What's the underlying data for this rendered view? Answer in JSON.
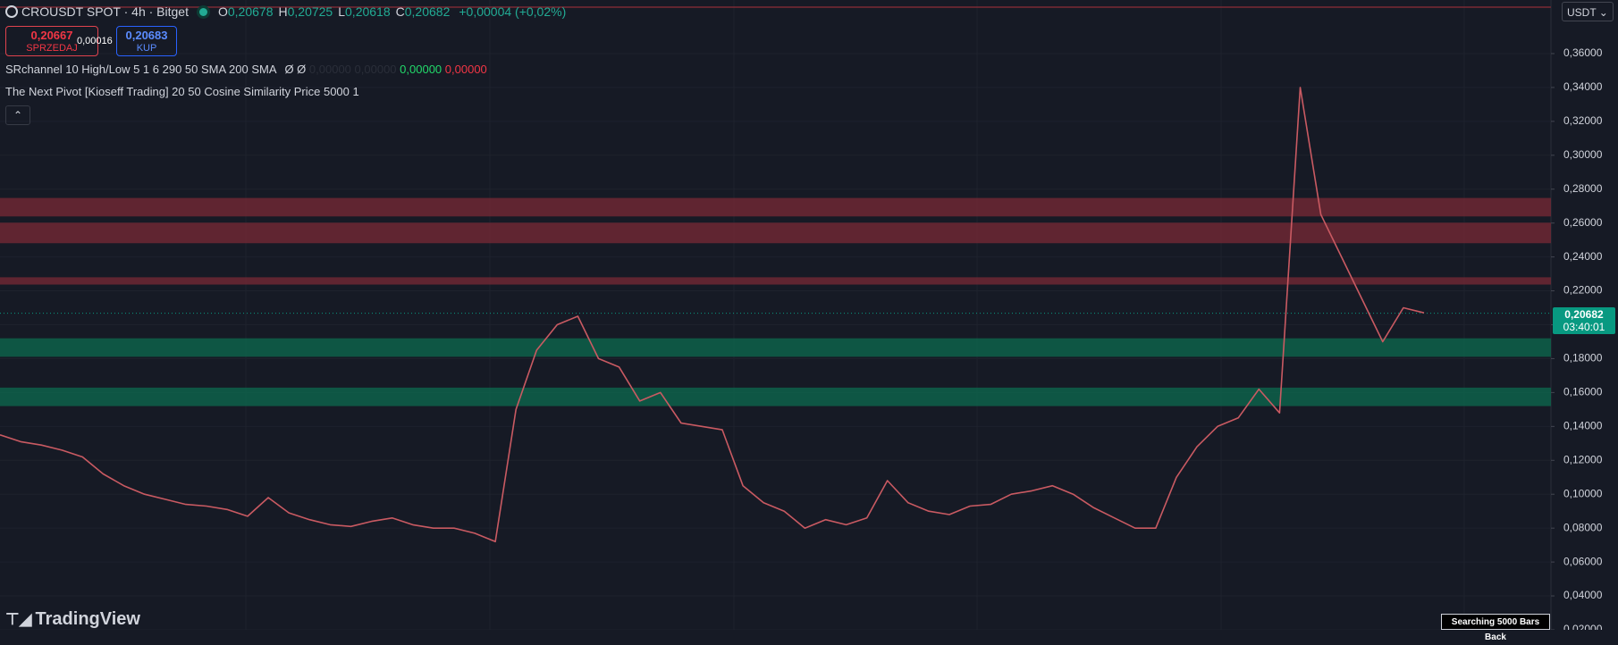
{
  "header": {
    "symbol": "CROUSDT SPOT · 4h · Bitget",
    "ohlc": [
      {
        "label": "O",
        "value": "0,20678"
      },
      {
        "label": "H",
        "value": "0,20725"
      },
      {
        "label": "L",
        "value": "0,20618"
      },
      {
        "label": "C",
        "value": "0,20682"
      }
    ],
    "change": "+0,00004 (+0,02%)"
  },
  "trade": {
    "sell_price": "0,20667",
    "sell_label": "SPRZEDAJ",
    "spread": "0,00016",
    "buy_price": "0,20683",
    "buy_label": "KUP"
  },
  "indicators": [
    {
      "name": "SRchannel 10 High/Low 5 1 6 290 50 SMA 200 SMA",
      "flags": "Ø Ø",
      "values": [
        "0,00000",
        "0,00000",
        "0,00000",
        "0,00000"
      ]
    },
    {
      "name": "The Next Pivot [Kioseff Trading] 20 50 Cosine Similarity Price 5000 1"
    }
  ],
  "currency": "USDT",
  "countdown": "03:40:01",
  "footer": {
    "logo": "TradingView",
    "status": "Searching 5000 Bars Back"
  },
  "chart_data": {
    "type": "line",
    "series": [
      {
        "color": "#c95a62",
        "values": [
          0.135,
          0.131,
          0.129,
          0.126,
          0.122,
          0.112,
          0.105,
          0.1,
          0.097,
          0.094,
          0.093,
          0.091,
          0.087,
          0.098,
          0.089,
          0.085,
          0.082,
          0.081,
          0.084,
          0.086,
          0.082,
          0.08,
          0.08,
          0.077,
          0.072,
          0.15,
          0.185,
          0.2,
          0.205,
          0.18,
          0.175,
          0.155,
          0.16,
          0.142,
          0.14,
          0.138,
          0.105,
          0.095,
          0.09,
          0.08,
          0.085,
          0.082,
          0.086,
          0.108,
          0.095,
          0.09,
          0.088,
          0.093,
          0.094,
          0.1,
          0.102,
          0.105,
          0.1,
          0.092,
          0.086,
          0.08,
          0.08,
          0.11,
          0.128,
          0.14,
          0.145,
          0.162,
          0.148,
          0.34,
          0.265,
          0.24,
          0.215,
          0.19,
          0.21,
          0.207
        ]
      }
    ],
    "zones": [
      {
        "low": 0.2639,
        "high": 0.2748,
        "color": "#7a2a35"
      },
      {
        "low": 0.2481,
        "high": 0.2602,
        "color": "#7a2a35"
      },
      {
        "low": 0.2237,
        "high": 0.228,
        "color": "#7a2a35"
      },
      {
        "low": 0.1811,
        "high": 0.192,
        "color": "#0c6b4f"
      },
      {
        "low": 0.152,
        "high": 0.1629,
        "color": "#0c6b4f"
      }
    ],
    "levels": [
      0.3874
    ],
    "last_price": {
      "value": 0.20682,
      "label": "0,20682"
    },
    "ylim": [
      0.02,
      0.3916
    ],
    "yticks": [
      {
        "value": 0.02,
        "label": "0,02000"
      },
      {
        "value": 0.04,
        "label": "0,04000"
      },
      {
        "value": 0.06,
        "label": "0,06000"
      },
      {
        "value": 0.08,
        "label": "0,08000"
      },
      {
        "value": 0.1,
        "label": "0,10000"
      },
      {
        "value": 0.12,
        "label": "0,12000"
      },
      {
        "value": 0.14,
        "label": "0,14000"
      },
      {
        "value": 0.16,
        "label": "0,16000"
      },
      {
        "value": 0.18,
        "label": "0,18000"
      },
      {
        "value": 0.2,
        "label": "0,20000"
      },
      {
        "value": 0.22,
        "label": "0,22000"
      },
      {
        "value": 0.24,
        "label": "0,24000"
      },
      {
        "value": 0.26,
        "label": "0,26000"
      },
      {
        "value": 0.28,
        "label": "0,28000"
      },
      {
        "value": 0.3,
        "label": "0,30000"
      },
      {
        "value": 0.32,
        "label": "0,32000"
      },
      {
        "value": 0.34,
        "label": "0,34000"
      },
      {
        "value": 0.36,
        "label": "0,36000"
      }
    ],
    "grid": true
  }
}
